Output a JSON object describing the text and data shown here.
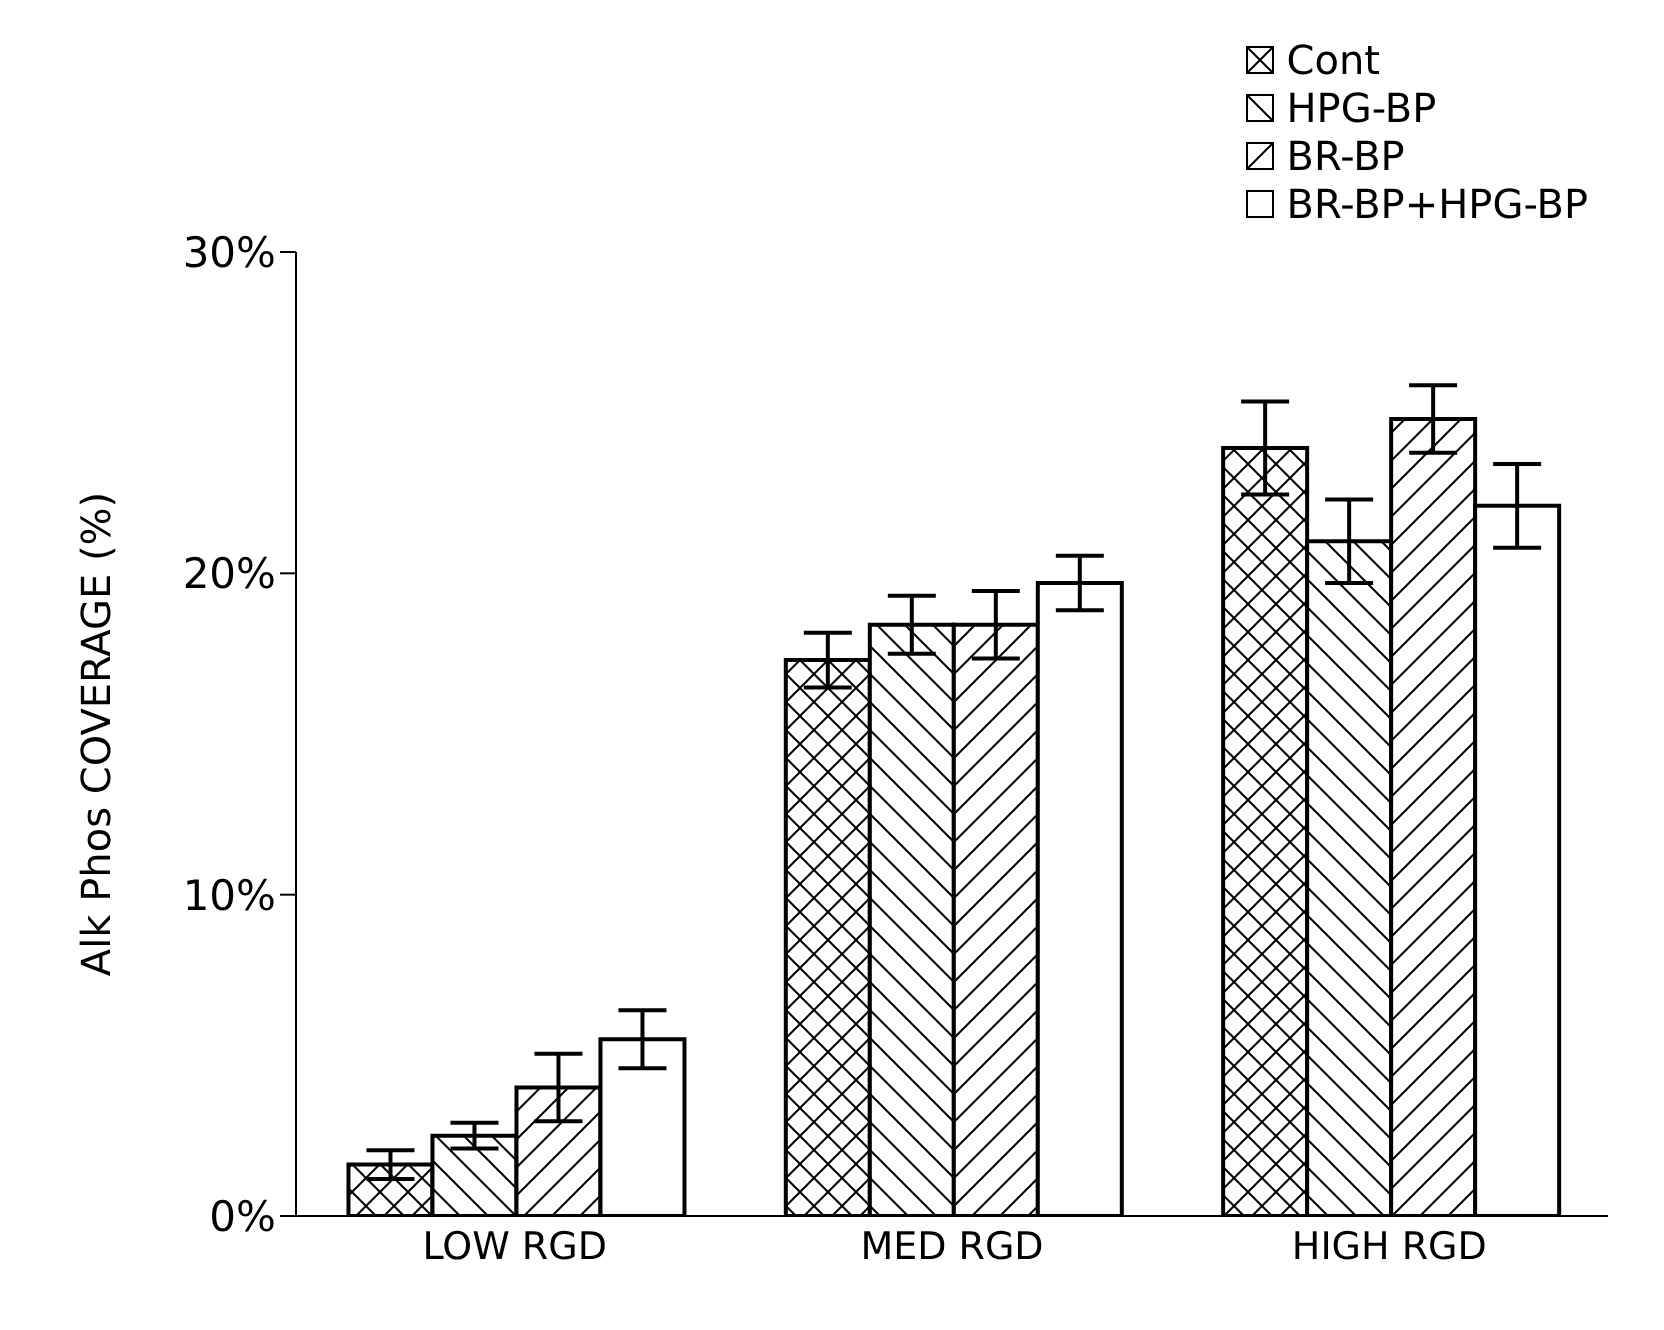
{
  "chart_data": {
    "type": "bar",
    "ylabel": "Alk Phos COVERAGE (%)",
    "categories": [
      "LOW RGD",
      "MED RGD",
      "HIGH RGD"
    ],
    "series": [
      {
        "name": "Cont",
        "color": "#000000",
        "values": [
          1.6,
          17.3,
          23.9
        ],
        "errors": [
          0.45,
          0.85,
          1.45
        ]
      },
      {
        "name": "HPG-BP",
        "color": "#000000",
        "values": [
          2.5,
          18.4,
          21.0
        ],
        "errors": [
          0.4,
          0.9,
          1.3
        ]
      },
      {
        "name": "BR-BP",
        "color": "#000000",
        "values": [
          4.0,
          18.4,
          24.8
        ],
        "errors": [
          1.05,
          1.05,
          1.05
        ]
      },
      {
        "name": "BR-BP+HPG-BP",
        "color": "#000000",
        "values": [
          5.5,
          19.7,
          22.1
        ],
        "errors": [
          0.9,
          0.85,
          1.3
        ]
      }
    ],
    "ylim": [
      0,
      30
    ],
    "yticks": [
      {
        "value": 0,
        "label": "0%"
      },
      {
        "value": 10,
        "label": "10%"
      },
      {
        "value": 20,
        "label": "20%"
      },
      {
        "value": 30,
        "label": "30%"
      }
    ],
    "grid": false,
    "legend": "top right"
  }
}
